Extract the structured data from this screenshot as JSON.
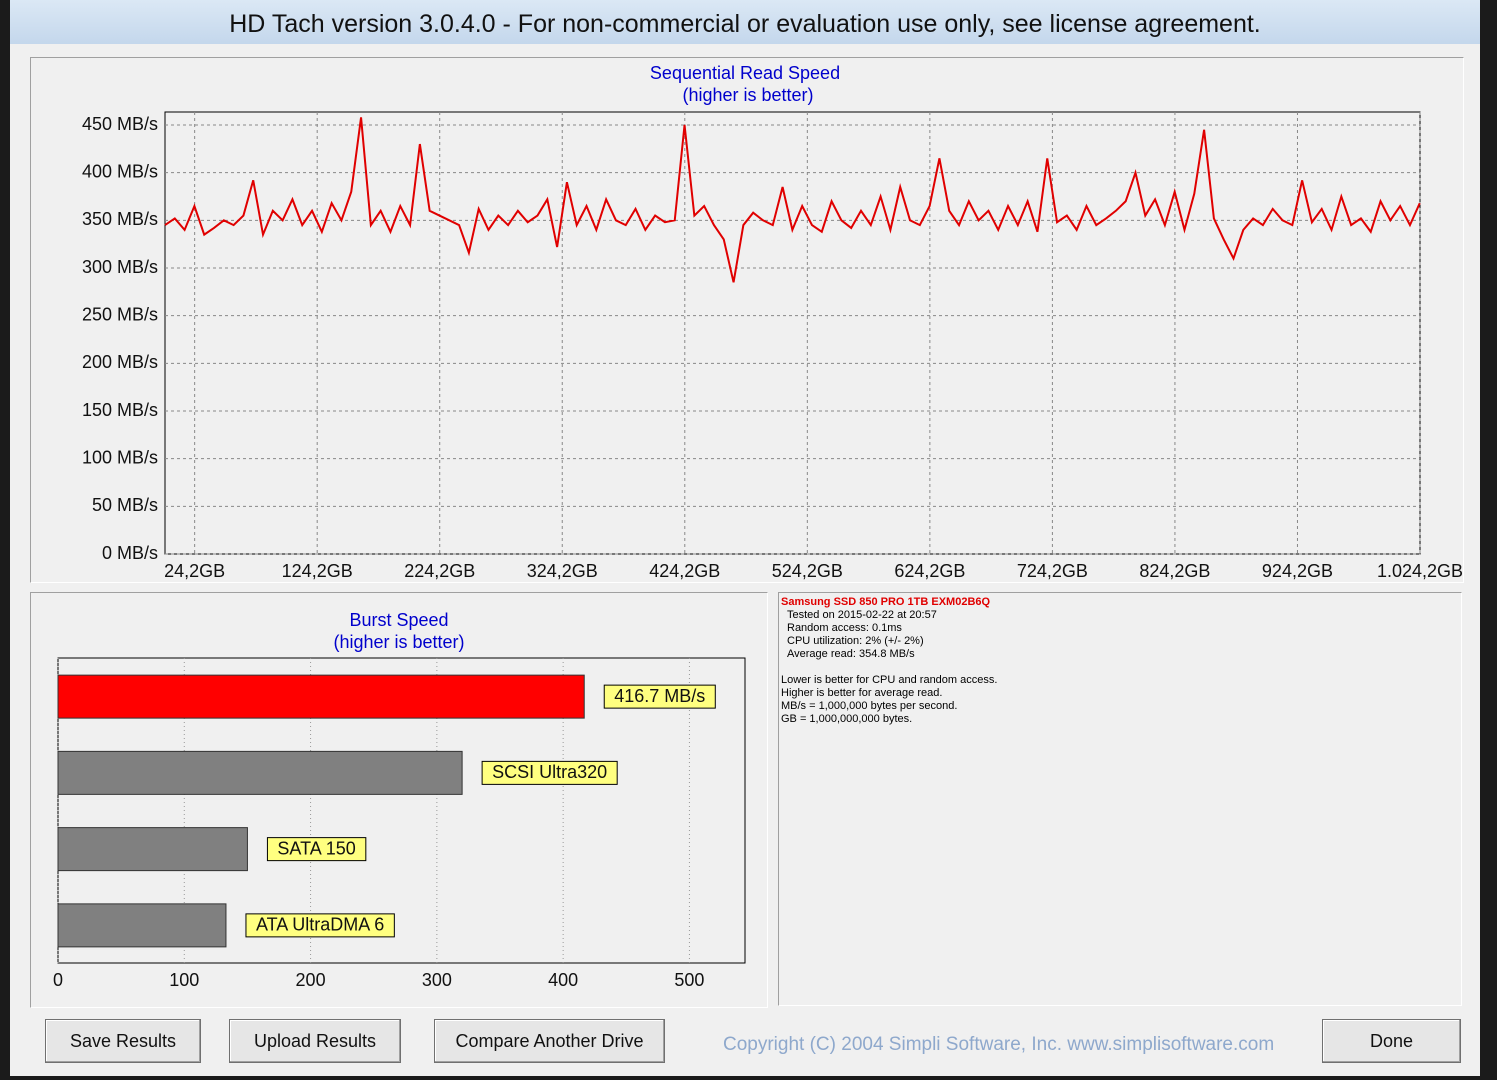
{
  "window": {
    "title": "HD Tach version 3.0.4.0  - For non-commercial or evaluation use only, see license agreement."
  },
  "chart_data": [
    {
      "type": "line",
      "title": "Sequential Read Speed",
      "subtitle": "(higher is better)",
      "x": [
        0,
        8,
        16,
        24,
        32,
        40,
        48,
        56,
        64,
        72,
        80,
        88,
        96,
        104,
        112,
        120,
        128,
        136,
        144,
        152,
        160,
        168,
        176,
        184,
        192,
        200,
        208,
        216,
        224,
        232,
        240,
        248,
        256,
        264,
        272,
        280,
        288,
        296,
        304,
        312,
        320,
        328,
        336,
        344,
        352,
        360,
        368,
        376,
        384,
        392,
        400,
        408,
        416,
        424,
        432,
        440,
        448,
        456,
        464,
        472,
        480,
        488,
        496,
        504,
        512,
        520,
        528,
        536,
        544,
        552,
        560,
        568,
        576,
        584,
        592,
        600,
        608,
        616,
        624,
        632,
        640,
        648,
        656,
        664,
        672,
        680,
        688,
        696,
        704,
        712,
        720,
        728,
        736,
        744,
        752,
        760,
        768,
        776,
        784,
        792,
        800,
        808,
        816,
        824,
        832,
        840,
        848,
        856,
        864,
        872,
        880,
        888,
        896,
        904,
        912,
        920,
        928,
        936,
        944,
        952,
        960,
        968,
        976,
        984,
        992,
        1000,
        1008,
        1016,
        1024
      ],
      "series": [
        {
          "color": "#e00000",
          "values": [
            345,
            352,
            340,
            365,
            335,
            342,
            350,
            345,
            355,
            392,
            335,
            360,
            350,
            372,
            345,
            360,
            338,
            368,
            350,
            380,
            458,
            345,
            360,
            338,
            365,
            345,
            430,
            360,
            355,
            350,
            345,
            316,
            362,
            340,
            355,
            345,
            360,
            348,
            355,
            372,
            322,
            390,
            345,
            365,
            340,
            372,
            350,
            345,
            362,
            340,
            355,
            348,
            350,
            450,
            355,
            365,
            345,
            330,
            285,
            345,
            358,
            350,
            345,
            385,
            340,
            365,
            345,
            338,
            370,
            350,
            342,
            360,
            345,
            375,
            340,
            385,
            350,
            345,
            365,
            415,
            360,
            345,
            370,
            350,
            360,
            340,
            365,
            345,
            370,
            338,
            415,
            348,
            355,
            340,
            365,
            345,
            352,
            360,
            370,
            400,
            355,
            372,
            345,
            380,
            340,
            378,
            445,
            352,
            330,
            310,
            340,
            352,
            345,
            362,
            350,
            345,
            392,
            348,
            362,
            340,
            375,
            345,
            352,
            338,
            370,
            350,
            365,
            345,
            368
          ]
        }
      ],
      "xlim": [
        0,
        1024.2
      ],
      "xticks": [
        {
          "value": 24.2,
          "label": "24,2GB"
        },
        {
          "value": 124.2,
          "label": "124,2GB"
        },
        {
          "value": 224.2,
          "label": "224,2GB"
        },
        {
          "value": 324.2,
          "label": "324,2GB"
        },
        {
          "value": 424.2,
          "label": "424,2GB"
        },
        {
          "value": 524.2,
          "label": "524,2GB"
        },
        {
          "value": 624.2,
          "label": "624,2GB"
        },
        {
          "value": 724.2,
          "label": "724,2GB"
        },
        {
          "value": 824.2,
          "label": "824,2GB"
        },
        {
          "value": 924.2,
          "label": "924,2GB"
        },
        {
          "value": 1024.2,
          "label": "1.024,2GB"
        }
      ],
      "ylim": [
        0,
        450
      ],
      "yticks": [
        {
          "value": 0,
          "label": "0 MB/s"
        },
        {
          "value": 50,
          "label": "50 MB/s"
        },
        {
          "value": 100,
          "label": "100 MB/s"
        },
        {
          "value": 150,
          "label": "150 MB/s"
        },
        {
          "value": 200,
          "label": "200 MB/s"
        },
        {
          "value": 250,
          "label": "250 MB/s"
        },
        {
          "value": 300,
          "label": "300 MB/s"
        },
        {
          "value": 350,
          "label": "350 MB/s"
        },
        {
          "value": 400,
          "label": "400 MB/s"
        },
        {
          "value": 450,
          "label": "450 MB/s"
        }
      ],
      "grid": true
    },
    {
      "type": "bar",
      "orientation": "horizontal",
      "title": "Burst Speed",
      "subtitle": "(higher is better)",
      "categories": [
        null,
        "SCSI Ultra320",
        "SATA 150",
        "ATA UltraDMA 6"
      ],
      "values": [
        416.7,
        320,
        150,
        133
      ],
      "value_labels": [
        "416.7 MB/s",
        null,
        null,
        null
      ],
      "colors": [
        "#ff0000",
        "#808080",
        "#808080",
        "#808080"
      ],
      "xlim": [
        0,
        544
      ],
      "xticks": [
        0,
        100,
        200,
        300,
        400,
        500
      ],
      "grid": true
    }
  ],
  "info": {
    "drive": "Samsung SSD 850 PRO 1TB EXM02B6Q",
    "results": [
      "Tested on 2015-02-22 at 20:57",
      "Random access: 0.1ms",
      "CPU utilization: 2% (+/- 2%)",
      "Average read: 354.8 MB/s"
    ],
    "notes": [
      "Lower is better for CPU and random access.",
      "Higher is better for average read.",
      "MB/s = 1,000,000 bytes per second.",
      "GB = 1,000,000,000 bytes."
    ]
  },
  "buttons": [
    "Save Results",
    "Upload Results",
    "Compare Another Drive",
    "Done"
  ],
  "copyright": "Copyright (C) 2004 Simpli Software, Inc. www.simplisoftware.com"
}
